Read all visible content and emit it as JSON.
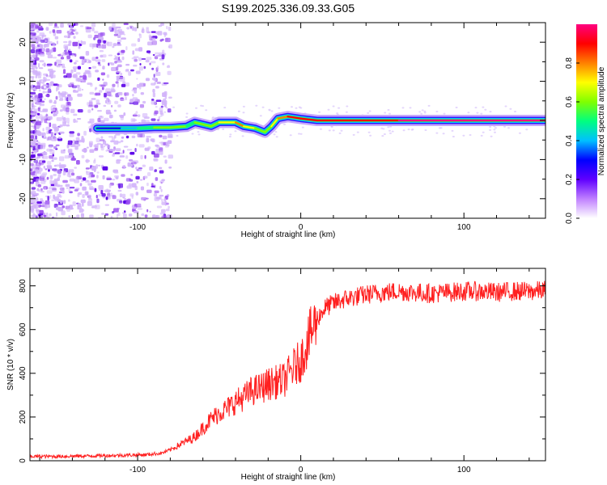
{
  "title": "S199.2025.336.09.33.G05",
  "chart_data": [
    {
      "type": "heatmap",
      "title": "S199.2025.336.09.33.G05",
      "xlabel": "Height of straight line (km)",
      "ylabel": "Frequency (Hz)",
      "xlim": [
        -166,
        150
      ],
      "ylim": [
        -25,
        25
      ],
      "x_ticks": [
        -100,
        0,
        100
      ],
      "y_ticks": [
        -20,
        -10,
        0,
        10,
        20
      ],
      "colorbar": {
        "label": "Normalized spectral amplitude",
        "range": [
          0,
          1
        ],
        "ticks": [
          "0.0",
          "0.2",
          "0.4",
          "0.6",
          "0.8"
        ],
        "colors": [
          "#ffffff",
          "#c080ff",
          "#6000ff",
          "#0000ff",
          "#00c0ff",
          "#00ff80",
          "#80ff00",
          "#ffff00",
          "#ff8000",
          "#ff0000",
          "#ff0080"
        ]
      },
      "ridge": [
        {
          "x": -125,
          "f": -2.0,
          "a": 0.25
        },
        {
          "x": -110,
          "f": -2.0,
          "a": 0.35
        },
        {
          "x": -100,
          "f": -2.0,
          "a": 0.45
        },
        {
          "x": -90,
          "f": -1.8,
          "a": 0.6
        },
        {
          "x": -80,
          "f": -1.8,
          "a": 0.65
        },
        {
          "x": -70,
          "f": -1.5,
          "a": 0.5
        },
        {
          "x": -65,
          "f": -0.5,
          "a": 0.55
        },
        {
          "x": -55,
          "f": -1.5,
          "a": 0.6
        },
        {
          "x": -50,
          "f": -0.5,
          "a": 0.7
        },
        {
          "x": -40,
          "f": -0.5,
          "a": 0.75
        },
        {
          "x": -35,
          "f": -1.5,
          "a": 0.75
        },
        {
          "x": -28,
          "f": -2.0,
          "a": 0.6
        },
        {
          "x": -22,
          "f": -3.0,
          "a": 0.55
        },
        {
          "x": -18,
          "f": -1.5,
          "a": 0.6
        },
        {
          "x": -14,
          "f": 0.5,
          "a": 0.75
        },
        {
          "x": -8,
          "f": 1.0,
          "a": 0.85
        },
        {
          "x": 0,
          "f": 0.5,
          "a": 0.85
        },
        {
          "x": 10,
          "f": 0.0,
          "a": 0.9
        },
        {
          "x": 30,
          "f": 0.0,
          "a": 0.9
        },
        {
          "x": 60,
          "f": 0.0,
          "a": 0.95
        },
        {
          "x": 100,
          "f": 0.0,
          "a": 0.95
        },
        {
          "x": 150,
          "f": 0.0,
          "a": 0.95
        }
      ]
    },
    {
      "type": "line",
      "xlabel": "Height of straight line (km)",
      "ylabel": "SNR (10 * v/v)",
      "xlim": [
        -166,
        150
      ],
      "ylim": [
        0,
        880
      ],
      "x_ticks": [
        -100,
        0,
        100
      ],
      "y_ticks": [
        0,
        200,
        400,
        600,
        800
      ],
      "color": "#ff2020",
      "series": [
        {
          "x": [
            -166,
            -150,
            -130,
            -110,
            -95,
            -85,
            -80,
            -75,
            -70,
            -65,
            -60,
            -55,
            -50,
            -45,
            -40,
            -35,
            -30,
            -25,
            -20,
            -15,
            -10,
            -5,
            0,
            5,
            10,
            15,
            20,
            25,
            30,
            40,
            50,
            60,
            70,
            80,
            90,
            100,
            110,
            120,
            130,
            140,
            150
          ],
          "y": [
            20,
            20,
            22,
            25,
            28,
            35,
            50,
            70,
            90,
            110,
            150,
            190,
            220,
            240,
            270,
            290,
            320,
            330,
            350,
            360,
            370,
            420,
            460,
            560,
            650,
            700,
            720,
            735,
            745,
            760,
            770,
            775,
            770,
            765,
            770,
            775,
            775,
            770,
            775,
            775,
            780
          ]
        }
      ]
    }
  ]
}
